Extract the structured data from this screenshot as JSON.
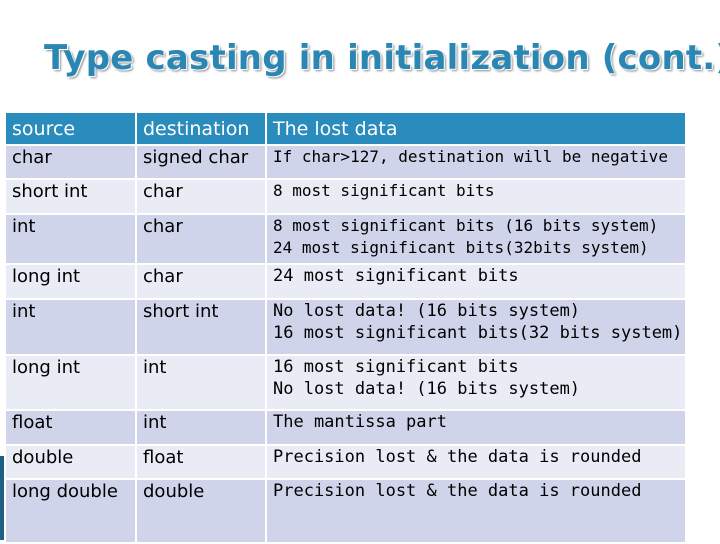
{
  "title": "Type casting in initialization (cont.)",
  "table": {
    "headers": [
      "source",
      "destination",
      "The lost data"
    ],
    "rows": [
      {
        "source": "char",
        "destination": "signed char",
        "lost": [
          "If char>127, destination will be negative"
        ]
      },
      {
        "source": "short int",
        "destination": "char",
        "lost": [
          "8 most significant bits"
        ]
      },
      {
        "source": "int",
        "destination": "char",
        "lost": [
          "8 most significant bits (16 bits system)",
          "24 most significant bits(32bits system)"
        ]
      },
      {
        "source": "long int",
        "destination": "char",
        "lost": [
          "24 most significant bits"
        ]
      },
      {
        "source": "int",
        "destination": "short int",
        "lost": [
          "No lost data! (16 bits system)",
          "16 most significant bits(32 bits system)"
        ]
      },
      {
        "source": "long int",
        "destination": "int",
        "lost": [
          "16 most significant bits",
          "No lost data! (16 bits system)"
        ]
      },
      {
        "source": "float",
        "destination": "int",
        "lost": [
          "The mantissa part"
        ]
      },
      {
        "source": "double",
        "destination": "float",
        "lost": [
          "Precision lost & the data is rounded"
        ]
      },
      {
        "source": "long double",
        "destination": "double",
        "lost": [
          "Precision lost & the data is rounded"
        ]
      }
    ]
  },
  "colors": {
    "title": "#2a86b3",
    "header_bg": "#2a8bbd",
    "row_light": "#e9ebf5",
    "row_dark": "#cfd4ea",
    "accent_bar": "#1f5f86"
  }
}
